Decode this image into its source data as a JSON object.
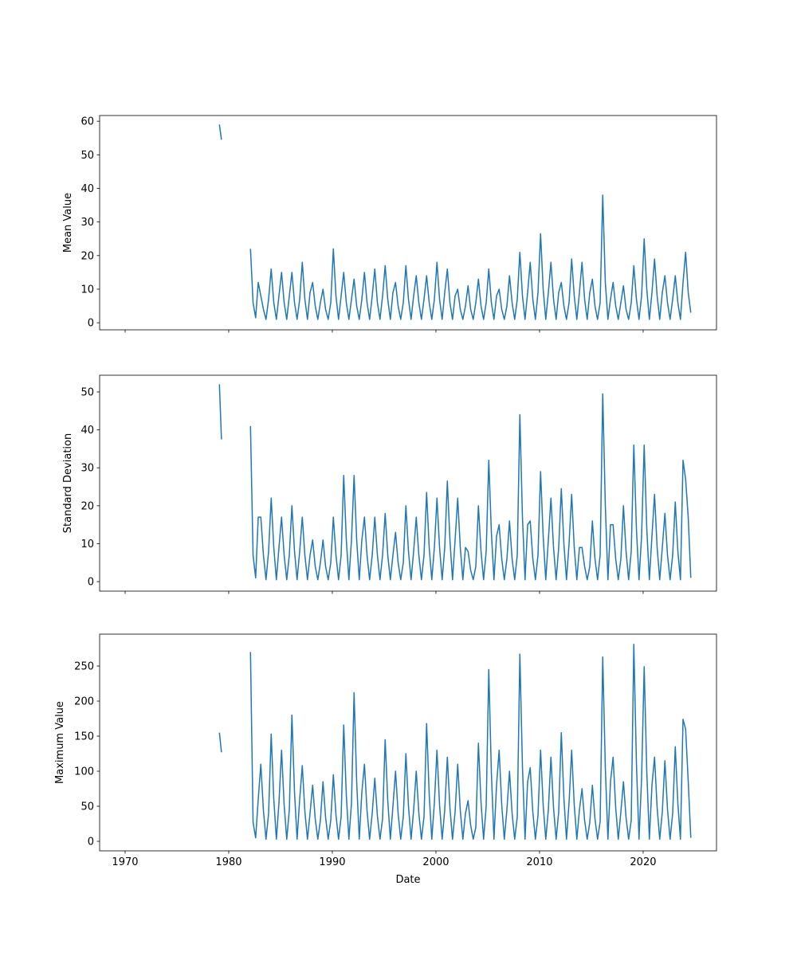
{
  "chart_data": [
    {
      "type": "line",
      "ylabel": "Mean Value",
      "color": "#1f77b4",
      "xlim": [
        1967.54,
        2027.08
      ],
      "xticks": [
        1970,
        1980,
        1990,
        2000,
        2010,
        2020
      ],
      "ylim": [
        -2.1,
        61.7
      ],
      "yticks": [
        0,
        10,
        20,
        30,
        40,
        50,
        60
      ],
      "x": [
        1979.1,
        1979.3,
        1980.5,
        1982.1,
        1982.35,
        1982.6,
        1982.85,
        1983.1,
        1983.35,
        1983.6,
        1983.85,
        1984.1,
        1984.35,
        1984.6,
        1984.85,
        1985.1,
        1985.35,
        1985.6,
        1985.85,
        1986.1,
        1986.35,
        1986.6,
        1986.85,
        1987.1,
        1987.35,
        1987.6,
        1987.85,
        1988.1,
        1988.35,
        1988.6,
        1988.85,
        1989.1,
        1989.35,
        1989.6,
        1989.85,
        1990.1,
        1990.35,
        1990.6,
        1990.85,
        1991.1,
        1991.35,
        1991.6,
        1991.85,
        1992.1,
        1992.35,
        1992.6,
        1992.85,
        1993.1,
        1993.35,
        1993.6,
        1993.85,
        1994.1,
        1994.35,
        1994.6,
        1994.85,
        1995.1,
        1995.35,
        1995.6,
        1995.85,
        1996.1,
        1996.35,
        1996.6,
        1996.85,
        1997.1,
        1997.35,
        1997.6,
        1997.85,
        1998.1,
        1998.35,
        1998.6,
        1998.85,
        1999.1,
        1999.35,
        1999.6,
        1999.85,
        2000.1,
        2000.35,
        2000.6,
        2000.85,
        2001.1,
        2001.35,
        2001.6,
        2001.85,
        2002.1,
        2002.35,
        2002.6,
        2002.85,
        2003.1,
        2003.35,
        2003.6,
        2003.85,
        2004.1,
        2004.35,
        2004.6,
        2004.85,
        2005.1,
        2005.35,
        2005.6,
        2005.85,
        2006.1,
        2006.35,
        2006.6,
        2006.85,
        2007.1,
        2007.35,
        2007.6,
        2007.85,
        2008.1,
        2008.35,
        2008.6,
        2008.85,
        2009.1,
        2009.35,
        2009.6,
        2009.85,
        2010.1,
        2010.35,
        2010.6,
        2010.85,
        2011.1,
        2011.35,
        2011.6,
        2011.85,
        2012.1,
        2012.35,
        2012.6,
        2012.85,
        2013.1,
        2013.35,
        2013.6,
        2013.85,
        2014.1,
        2014.35,
        2014.6,
        2014.85,
        2015.1,
        2015.35,
        2015.6,
        2015.85,
        2016.1,
        2016.35,
        2016.6,
        2016.85,
        2017.1,
        2017.35,
        2017.6,
        2017.85,
        2018.1,
        2018.35,
        2018.6,
        2018.85,
        2019.1,
        2019.35,
        2019.6,
        2019.85,
        2020.1,
        2020.35,
        2020.6,
        2020.85,
        2021.1,
        2021.35,
        2021.6,
        2021.85,
        2022.1,
        2022.35,
        2022.6,
        2022.85,
        2023.1,
        2023.35,
        2023.6,
        2023.85,
        2024.1,
        2024.35,
        2024.6
      ],
      "values": [
        59,
        54.5,
        null,
        22,
        6,
        1.5,
        12,
        8,
        4,
        1,
        7,
        16,
        6,
        1,
        8,
        15,
        6,
        1,
        8,
        15,
        6,
        1,
        7,
        18,
        7,
        1,
        9,
        12,
        5,
        1,
        6,
        10,
        4,
        1,
        6,
        22,
        8,
        1,
        8,
        15,
        6,
        1,
        7,
        13,
        5,
        1,
        7,
        15,
        6,
        1,
        8,
        16,
        6,
        1,
        8,
        17,
        7,
        1,
        9,
        12,
        5,
        1,
        6,
        17,
        7,
        1,
        8,
        14,
        6,
        1,
        7,
        14,
        6,
        1,
        7,
        18,
        7,
        1,
        9,
        16,
        6,
        1,
        8,
        10,
        4,
        1,
        5,
        11,
        4,
        1,
        6,
        13,
        5,
        1,
        6,
        16,
        6,
        1,
        8,
        10,
        4,
        1,
        5,
        14,
        6,
        1,
        7,
        21,
        8,
        1,
        9,
        18,
        7,
        1,
        9,
        26.5,
        10,
        1,
        9,
        18,
        7,
        1,
        9,
        12,
        5,
        1,
        6,
        19,
        8,
        1,
        9,
        18,
        7,
        1,
        9,
        13,
        5,
        1,
        6,
        38,
        12,
        1,
        7,
        12,
        5,
        1,
        6,
        11,
        4,
        1,
        6,
        17,
        7,
        1,
        8,
        25,
        10,
        1,
        9,
        19,
        8,
        1,
        9,
        14,
        6,
        1,
        7,
        14,
        6,
        1,
        12,
        21,
        9,
        3
      ]
    },
    {
      "type": "line",
      "ylabel": "Standard Deviation",
      "color": "#1f77b4",
      "xlim": [
        1967.54,
        2027.08
      ],
      "xticks": [
        1970,
        1980,
        1990,
        2000,
        2010,
        2020
      ],
      "ylim": [
        -2.5,
        54.4
      ],
      "yticks": [
        0,
        10,
        20,
        30,
        40,
        50
      ],
      "x": [
        1979.1,
        1979.3,
        1980.5,
        1982.1,
        1982.35,
        1982.6,
        1982.85,
        1983.1,
        1983.35,
        1983.6,
        1983.85,
        1984.1,
        1984.35,
        1984.6,
        1984.85,
        1985.1,
        1985.35,
        1985.6,
        1985.85,
        1986.1,
        1986.35,
        1986.6,
        1986.85,
        1987.1,
        1987.35,
        1987.6,
        1987.85,
        1988.1,
        1988.35,
        1988.6,
        1988.85,
        1989.1,
        1989.35,
        1989.6,
        1989.85,
        1990.1,
        1990.35,
        1990.6,
        1990.85,
        1991.1,
        1991.35,
        1991.6,
        1991.85,
        1992.1,
        1992.35,
        1992.6,
        1992.85,
        1993.1,
        1993.35,
        1993.6,
        1993.85,
        1994.1,
        1994.35,
        1994.6,
        1994.85,
        1995.1,
        1995.35,
        1995.6,
        1995.85,
        1996.1,
        1996.35,
        1996.6,
        1996.85,
        1997.1,
        1997.35,
        1997.6,
        1997.85,
        1998.1,
        1998.35,
        1998.6,
        1998.85,
        1999.1,
        1999.35,
        1999.6,
        1999.85,
        2000.1,
        2000.35,
        2000.6,
        2000.85,
        2001.1,
        2001.35,
        2001.6,
        2001.85,
        2002.1,
        2002.35,
        2002.6,
        2002.85,
        2003.1,
        2003.35,
        2003.6,
        2003.85,
        2004.1,
        2004.35,
        2004.6,
        2004.85,
        2005.1,
        2005.35,
        2005.6,
        2005.85,
        2006.1,
        2006.35,
        2006.6,
        2006.85,
        2007.1,
        2007.35,
        2007.6,
        2007.85,
        2008.1,
        2008.35,
        2008.6,
        2008.85,
        2009.1,
        2009.35,
        2009.6,
        2009.85,
        2010.1,
        2010.35,
        2010.6,
        2010.85,
        2011.1,
        2011.35,
        2011.6,
        2011.85,
        2012.1,
        2012.35,
        2012.6,
        2012.85,
        2013.1,
        2013.35,
        2013.6,
        2013.85,
        2014.1,
        2014.35,
        2014.6,
        2014.85,
        2015.1,
        2015.35,
        2015.6,
        2015.85,
        2016.1,
        2016.35,
        2016.6,
        2016.85,
        2017.1,
        2017.35,
        2017.6,
        2017.85,
        2018.1,
        2018.35,
        2018.6,
        2018.85,
        2019.1,
        2019.35,
        2019.6,
        2019.85,
        2020.1,
        2020.35,
        2020.6,
        2020.85,
        2021.1,
        2021.35,
        2021.6,
        2021.85,
        2022.1,
        2022.35,
        2022.6,
        2022.85,
        2023.1,
        2023.35,
        2023.6,
        2023.85,
        2024.1,
        2024.35,
        2024.6
      ],
      "values": [
        52,
        37.5,
        null,
        41,
        7,
        1,
        17,
        17,
        7,
        0.5,
        8,
        22,
        9,
        0.5,
        9,
        17,
        7,
        0.5,
        7,
        20,
        8,
        0.5,
        8,
        17,
        7,
        0.5,
        7,
        11,
        4,
        0.5,
        5,
        11,
        4,
        0.5,
        5,
        17,
        7,
        0.5,
        7,
        28,
        11,
        0.5,
        11,
        28,
        11,
        0.5,
        11,
        17,
        7,
        0.5,
        7,
        17,
        7,
        0.5,
        7,
        18,
        7,
        0.5,
        7,
        13,
        5,
        0.5,
        5,
        20,
        8,
        0.5,
        8,
        17,
        7,
        0.5,
        7,
        23.5,
        9,
        0.5,
        9,
        22,
        9,
        0.5,
        9,
        26.5,
        11,
        0.5,
        11,
        22,
        9,
        0.5,
        9,
        8,
        3,
        0.5,
        4,
        20,
        8,
        0.5,
        8,
        32,
        13,
        0.5,
        12,
        15,
        6,
        0.5,
        6,
        16,
        6,
        0.5,
        7,
        44,
        17,
        0.5,
        15,
        16,
        6,
        0.5,
        7,
        29,
        12,
        0.5,
        11,
        22,
        9,
        0.5,
        9,
        24.5,
        10,
        0.5,
        10,
        23,
        9,
        0.5,
        9,
        9,
        4,
        0.5,
        4,
        16,
        6,
        0.5,
        7,
        49.5,
        20,
        0.5,
        15,
        15,
        6,
        0.5,
        6,
        20,
        8,
        0.5,
        8,
        36,
        14,
        0.5,
        12,
        36,
        14,
        0.5,
        12,
        23,
        9,
        0.5,
        9,
        18,
        7,
        0.5,
        7,
        21,
        8,
        0.5,
        32,
        27,
        17,
        1
      ]
    },
    {
      "type": "line",
      "ylabel": "Maximum Value",
      "xlabel": "Date",
      "color": "#1f77b4",
      "xlim": [
        1967.54,
        2027.08
      ],
      "xticks": [
        1970,
        1980,
        1990,
        2000,
        2010,
        2020
      ],
      "ylim": [
        -13.6,
        295.5
      ],
      "yticks": [
        0,
        50,
        100,
        150,
        200,
        250
      ],
      "x": [
        1979.1,
        1979.3,
        1980.5,
        1982.1,
        1982.35,
        1982.6,
        1982.85,
        1983.1,
        1983.35,
        1983.6,
        1983.85,
        1984.1,
        1984.35,
        1984.6,
        1984.85,
        1985.1,
        1985.35,
        1985.6,
        1985.85,
        1986.1,
        1986.35,
        1986.6,
        1986.85,
        1987.1,
        1987.35,
        1987.6,
        1987.85,
        1988.1,
        1988.35,
        1988.6,
        1988.85,
        1989.1,
        1989.35,
        1989.6,
        1989.85,
        1990.1,
        1990.35,
        1990.6,
        1990.85,
        1991.1,
        1991.35,
        1991.6,
        1991.85,
        1992.1,
        1992.35,
        1992.6,
        1992.85,
        1993.1,
        1993.35,
        1993.6,
        1993.85,
        1994.1,
        1994.35,
        1994.6,
        1994.85,
        1995.1,
        1995.35,
        1995.6,
        1995.85,
        1996.1,
        1996.35,
        1996.6,
        1996.85,
        1997.1,
        1997.35,
        1997.6,
        1997.85,
        1998.1,
        1998.35,
        1998.6,
        1998.85,
        1999.1,
        1999.35,
        1999.6,
        1999.85,
        2000.1,
        2000.35,
        2000.6,
        2000.85,
        2001.1,
        2001.35,
        2001.6,
        2001.85,
        2002.1,
        2002.35,
        2002.6,
        2002.85,
        2003.1,
        2003.35,
        2003.6,
        2003.85,
        2004.1,
        2004.35,
        2004.6,
        2004.85,
        2005.1,
        2005.35,
        2005.6,
        2005.85,
        2006.1,
        2006.35,
        2006.6,
        2006.85,
        2007.1,
        2007.35,
        2007.6,
        2007.85,
        2008.1,
        2008.35,
        2008.6,
        2008.85,
        2009.1,
        2009.35,
        2009.6,
        2009.85,
        2010.1,
        2010.35,
        2010.6,
        2010.85,
        2011.1,
        2011.35,
        2011.6,
        2011.85,
        2012.1,
        2012.35,
        2012.6,
        2012.85,
        2013.1,
        2013.35,
        2013.6,
        2013.85,
        2014.1,
        2014.35,
        2014.6,
        2014.85,
        2015.1,
        2015.35,
        2015.6,
        2015.85,
        2016.1,
        2016.35,
        2016.6,
        2016.85,
        2017.1,
        2017.35,
        2017.6,
        2017.85,
        2018.1,
        2018.35,
        2018.6,
        2018.85,
        2019.1,
        2019.35,
        2019.6,
        2019.85,
        2020.1,
        2020.35,
        2020.6,
        2020.85,
        2021.1,
        2021.35,
        2021.6,
        2021.85,
        2022.1,
        2022.35,
        2022.6,
        2022.85,
        2023.1,
        2023.35,
        2023.6,
        2023.85,
        2024.1,
        2024.35,
        2024.6
      ],
      "values": [
        155,
        127,
        null,
        270,
        27,
        5,
        60,
        110,
        44,
        3,
        40,
        153,
        60,
        3,
        55,
        130,
        52,
        3,
        45,
        180,
        70,
        3,
        60,
        108,
        43,
        3,
        40,
        80,
        32,
        3,
        30,
        85,
        34,
        3,
        30,
        95,
        38,
        3,
        35,
        166,
        66,
        3,
        55,
        212,
        85,
        3,
        70,
        110,
        44,
        3,
        40,
        90,
        36,
        3,
        32,
        145,
        58,
        3,
        50,
        100,
        40,
        3,
        35,
        125,
        50,
        3,
        45,
        100,
        40,
        3,
        35,
        168,
        67,
        3,
        55,
        130,
        52,
        3,
        45,
        120,
        48,
        3,
        42,
        110,
        44,
        3,
        40,
        58,
        23,
        3,
        20,
        140,
        56,
        3,
        50,
        245,
        98,
        3,
        80,
        130,
        52,
        3,
        45,
        100,
        40,
        3,
        35,
        267,
        107,
        3,
        85,
        105,
        42,
        3,
        37,
        130,
        52,
        3,
        45,
        120,
        48,
        3,
        42,
        155,
        62,
        3,
        55,
        130,
        52,
        3,
        45,
        75,
        30,
        3,
        27,
        80,
        32,
        3,
        28,
        263,
        105,
        3,
        85,
        120,
        48,
        3,
        42,
        85,
        34,
        3,
        30,
        281,
        112,
        3,
        90,
        249,
        100,
        3,
        80,
        120,
        48,
        3,
        42,
        115,
        46,
        3,
        40,
        135,
        54,
        3,
        174,
        160,
        86,
        5
      ]
    }
  ]
}
